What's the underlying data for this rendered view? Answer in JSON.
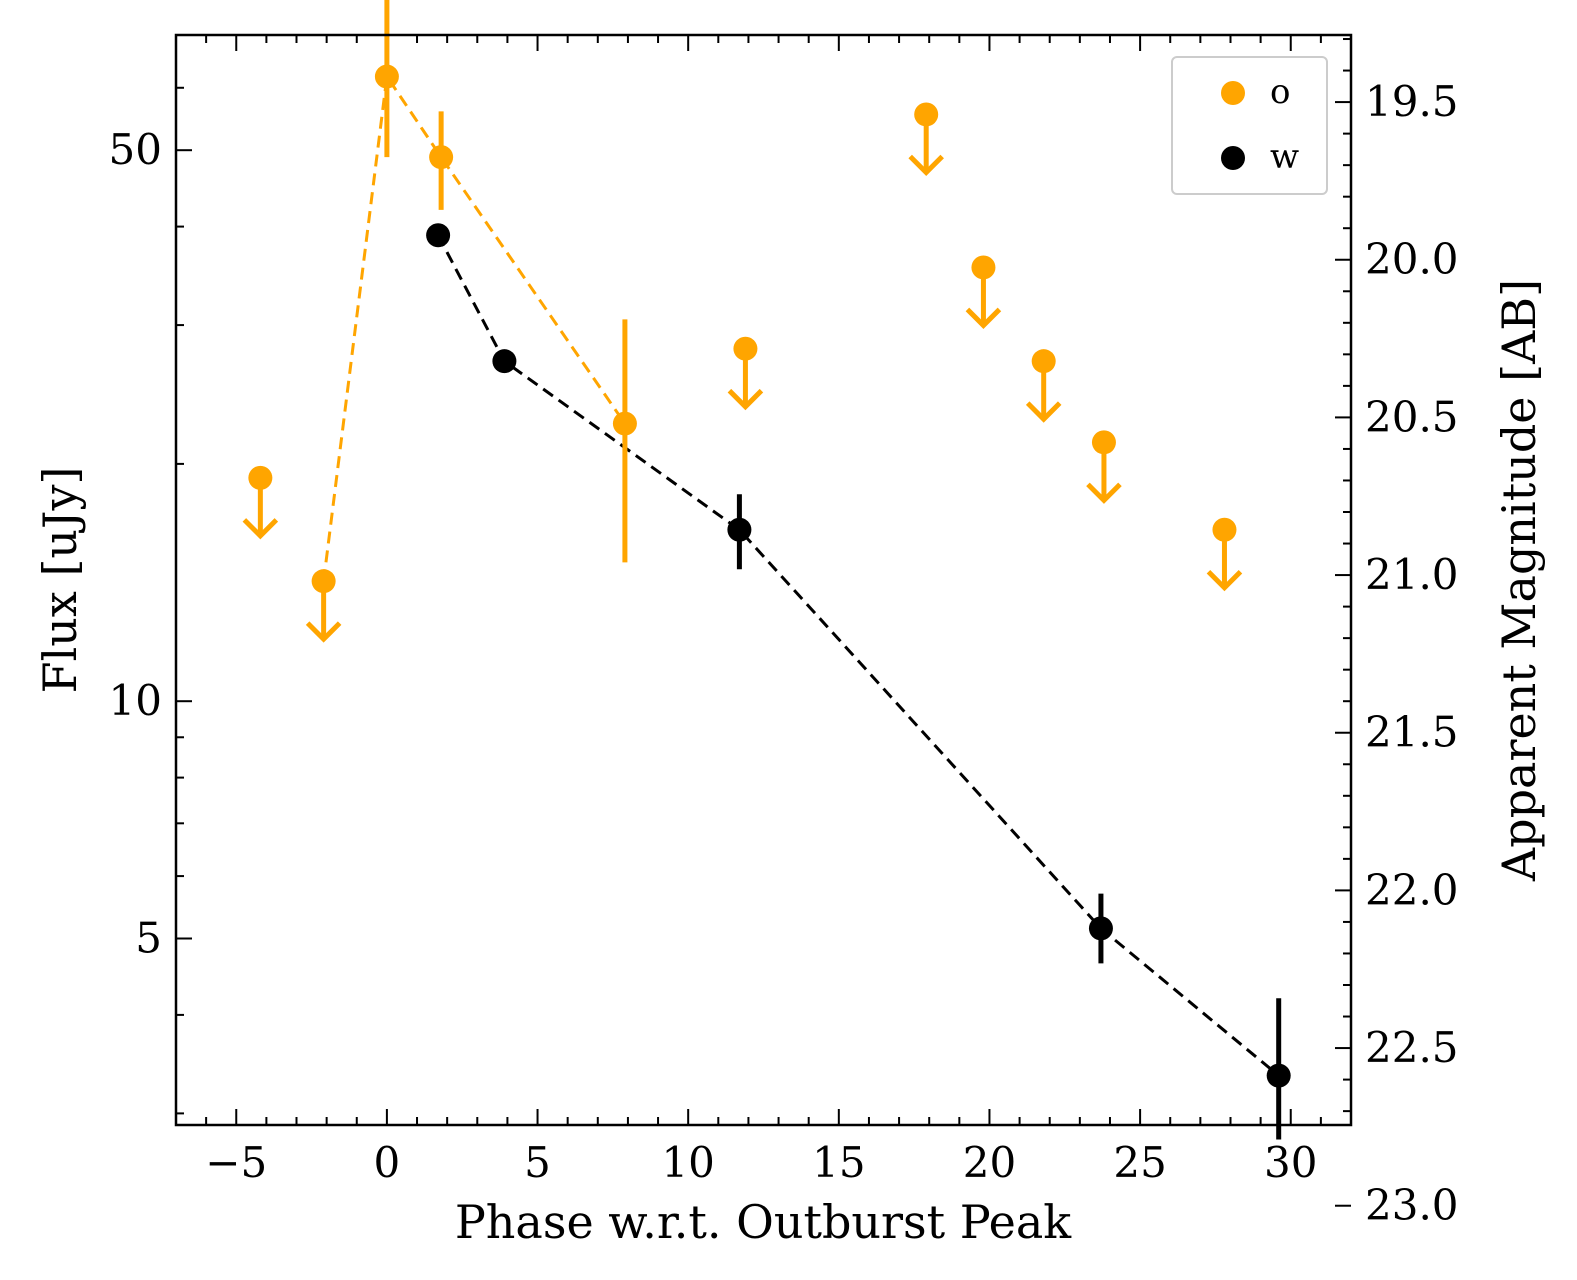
{
  "chart_data": {
    "type": "scatter",
    "xlabel": "Phase w.r.t. Outburst Peak",
    "ylabel": "Flux [uJy]",
    "ylabel_right": "Apparent Magnitude [AB]",
    "xlim": [
      -7,
      32
    ],
    "ylim": [
      2.9,
      70
    ],
    "yscale": "log",
    "xticks": [
      "−5",
      "0",
      "5",
      "10",
      "15",
      "20",
      "25",
      "30"
    ],
    "xtick_values": [
      -5,
      0,
      5,
      10,
      15,
      20,
      25,
      30
    ],
    "yticks": [
      "5",
      "10",
      "50"
    ],
    "ytick_values": [
      5,
      10,
      50
    ],
    "mag_ticks": [
      "19.5",
      "20.0",
      "20.5",
      "21.0",
      "21.5",
      "22.0",
      "22.5",
      "23.0"
    ],
    "mag_tick_values": [
      19.5,
      20.0,
      20.5,
      21.0,
      21.5,
      22.0,
      22.5,
      23.0
    ],
    "legend": {
      "position": "top-right",
      "entries": [
        "o",
        "w"
      ]
    },
    "colors": {
      "o": "#FFA500",
      "w": "#000000"
    },
    "series": [
      {
        "name": "o",
        "detections": [
          {
            "x": 0.0,
            "y": 62,
            "yerr_low": 49,
            "yerr_high": 79
          },
          {
            "x": 1.8,
            "y": 49,
            "yerr_low": 42,
            "yerr_high": 56
          },
          {
            "x": 7.9,
            "y": 22.5,
            "yerr_low": 15.0,
            "yerr_high": 30.5
          }
        ],
        "line_points": [
          {
            "x": -2.1,
            "y": 14.2
          },
          {
            "x": 0.0,
            "y": 62
          },
          {
            "x": 1.8,
            "y": 49
          },
          {
            "x": 7.9,
            "y": 22.5
          }
        ],
        "upper_limits": [
          {
            "x": -4.2,
            "y": 19.2
          },
          {
            "x": -2.1,
            "y": 14.2
          },
          {
            "x": 11.9,
            "y": 28.0
          },
          {
            "x": 17.9,
            "y": 55.5
          },
          {
            "x": 19.8,
            "y": 35.5
          },
          {
            "x": 21.8,
            "y": 27.0
          },
          {
            "x": 23.8,
            "y": 21.3
          },
          {
            "x": 27.8,
            "y": 16.5
          }
        ]
      },
      {
        "name": "w",
        "detections": [
          {
            "x": 1.7,
            "y": 39.0,
            "yerr_low": 38.5,
            "yerr_high": 39.5
          },
          {
            "x": 3.9,
            "y": 27.0,
            "yerr_low": 26.6,
            "yerr_high": 27.4
          },
          {
            "x": 11.7,
            "y": 16.5,
            "yerr_low": 14.7,
            "yerr_high": 18.3
          },
          {
            "x": 23.7,
            "y": 5.15,
            "yerr_low": 4.65,
            "yerr_high": 5.7
          },
          {
            "x": 29.6,
            "y": 3.35,
            "yerr_low": 2.78,
            "yerr_high": 4.2
          }
        ]
      }
    ]
  }
}
